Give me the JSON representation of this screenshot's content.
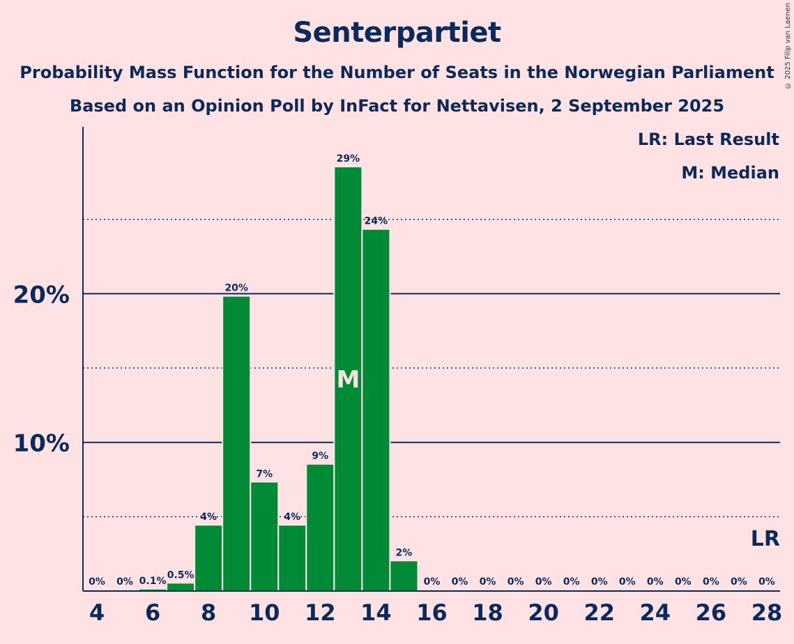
{
  "header": {
    "title": "Senterpartiet",
    "subtitle1": "Probability Mass Function for the Number of Seats in the Norwegian Parliament",
    "subtitle2": "Based on an Opinion Poll by InFact for Nettavisen, 2 September 2025"
  },
  "legend": {
    "last_result": "LR: Last Result",
    "median": "M: Median"
  },
  "credit": "© 2025 Filip van Laenen",
  "colors": {
    "background": "#ffe2e3",
    "bar": "#008a36",
    "text": "#0a2a5e"
  },
  "chart_data": {
    "type": "bar",
    "x": [
      4,
      5,
      6,
      7,
      8,
      9,
      10,
      11,
      12,
      13,
      14,
      15,
      16,
      17,
      18,
      19,
      20,
      21,
      22,
      23,
      24,
      25,
      26,
      27,
      28
    ],
    "values": [
      0,
      0,
      0.1,
      0.5,
      4.4,
      19.8,
      7.3,
      4.4,
      8.5,
      28.5,
      24.3,
      2.0,
      0,
      0,
      0,
      0,
      0,
      0,
      0,
      0,
      0,
      0,
      0,
      0,
      0
    ],
    "labels": [
      "0%",
      "0%",
      "0.1%",
      "0.5%",
      "4%",
      "20%",
      "7%",
      "4%",
      "9%",
      "29%",
      "24%",
      "2%",
      "0%",
      "0%",
      "0%",
      "0%",
      "0%",
      "0%",
      "0%",
      "0%",
      "0%",
      "0%",
      "0%",
      "0%",
      "0%"
    ],
    "x_tick_labels": [
      "4",
      "6",
      "8",
      "10",
      "12",
      "14",
      "16",
      "18",
      "20",
      "22",
      "24",
      "26",
      "28"
    ],
    "y_ticks": [
      10,
      20
    ],
    "y_tick_labels": [
      "10%",
      "20%"
    ],
    "y_dotted_lines": [
      5,
      15,
      25
    ],
    "ylim": [
      0,
      31
    ],
    "median_seat": 13,
    "median_label": "M",
    "last_result_seat": 28,
    "last_result_label": "LR"
  }
}
